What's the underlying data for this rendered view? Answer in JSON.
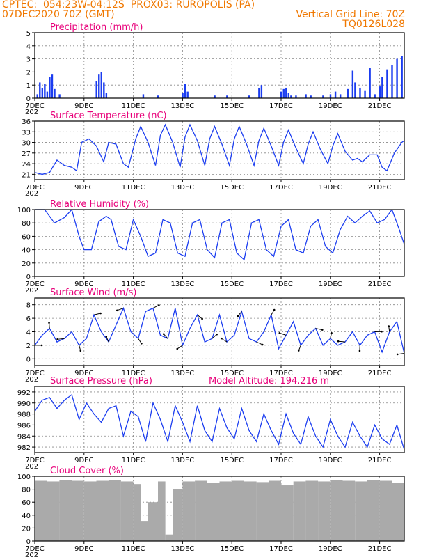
{
  "header": {
    "line1_left": "CPTEC:  054:23W-04:12S  PROX03: RUROPOLIS (PA)",
    "line2_left": "07DEC2020 70Z (GMT)",
    "line2_right": "Vertical Grid Line: 70Z",
    "line3_right": "TQ0126L028"
  },
  "colors": {
    "header": "#f07800",
    "title": "#e8007a",
    "line": "#1a3cf0",
    "cloud": "#aaaaaa"
  },
  "x_axis": {
    "labels": [
      "7DEC",
      "9DEC",
      "11DEC",
      "13DEC",
      "15DEC",
      "17DEC",
      "19DEC",
      "21DEC"
    ],
    "label_days": [
      7,
      9,
      11,
      13,
      15,
      17,
      19,
      21
    ],
    "start_day": 7,
    "end_day": 22,
    "clipped_label": "202"
  },
  "panels": [
    {
      "key": "precip",
      "title": "Precipitation (mm/h)",
      "type": "bar",
      "ylim": [
        0,
        5
      ],
      "yticks": [
        0,
        1,
        2,
        3,
        4,
        5
      ]
    },
    {
      "key": "temp",
      "title": "Surface Temperature (nC)",
      "type": "line",
      "ylim": [
        19.5,
        36
      ],
      "yticks": [
        21,
        24,
        27,
        30,
        33,
        36
      ]
    },
    {
      "key": "rh",
      "title": "Relative Humidity (%)",
      "type": "line",
      "ylim": [
        0,
        100
      ],
      "yticks": [
        0,
        20,
        40,
        60,
        80,
        100
      ]
    },
    {
      "key": "wind",
      "title": "Surface Wind (m/s)",
      "type": "line+arrows",
      "ylim": [
        -1,
        9
      ],
      "yticks": [
        0,
        2,
        4,
        6,
        8
      ]
    },
    {
      "key": "pres",
      "title": "Surface Pressure (hPa)",
      "subtitle": "Model Altitude: 194.216 m",
      "type": "line",
      "ylim": [
        981,
        993
      ],
      "yticks": [
        982,
        984,
        986,
        988,
        990,
        992
      ]
    },
    {
      "key": "cloud",
      "title": "Cloud Cover (%)",
      "type": "bar",
      "ylim": [
        0,
        100
      ],
      "yticks": [
        0,
        20,
        40,
        60,
        80,
        100
      ]
    }
  ],
  "chart_data": [
    {
      "type": "bar",
      "title": "Precipitation (mm/h)",
      "ylim": [
        0,
        5
      ],
      "x": [
        7.1,
        7.2,
        7.3,
        7.4,
        7.5,
        7.6,
        7.7,
        7.8,
        8.0,
        9.5,
        9.6,
        9.7,
        9.8,
        9.9,
        11.4,
        12.0,
        13.0,
        13.1,
        13.2,
        14.3,
        14.8,
        15.7,
        16.1,
        16.2,
        17.0,
        17.1,
        17.2,
        17.3,
        17.4,
        17.6,
        18.0,
        18.2,
        18.7,
        19.0,
        19.2,
        19.4,
        19.7,
        19.9,
        20.0,
        20.2,
        20.4,
        20.6,
        20.8,
        21.0,
        21.1,
        21.3,
        21.5,
        21.7,
        21.9
      ],
      "values": [
        0.3,
        1.2,
        0.8,
        1.1,
        0.5,
        1.6,
        1.8,
        0.7,
        0.3,
        1.3,
        1.8,
        2.0,
        1.2,
        0.4,
        0.3,
        0.2,
        0.4,
        1.1,
        0.5,
        0.2,
        0.2,
        0.2,
        0.8,
        1.0,
        0.5,
        0.7,
        0.8,
        0.4,
        0.2,
        0.2,
        0.3,
        0.2,
        0.2,
        0.3,
        0.5,
        0.3,
        0.7,
        2.1,
        1.2,
        0.8,
        0.6,
        2.3,
        0.3,
        0.9,
        1.6,
        2.2,
        2.5,
        3.0,
        3.2
      ]
    },
    {
      "type": "line",
      "title": "Surface Temperature (nC)",
      "ylim": [
        19.5,
        36
      ],
      "x": [
        7.0,
        7.3,
        7.6,
        7.9,
        8.2,
        8.5,
        8.7,
        8.9,
        9.2,
        9.5,
        9.8,
        10.0,
        10.3,
        10.6,
        10.8,
        11.1,
        11.3,
        11.6,
        11.9,
        12.1,
        12.3,
        12.6,
        12.9,
        13.1,
        13.3,
        13.6,
        13.9,
        14.1,
        14.3,
        14.6,
        14.9,
        15.1,
        15.3,
        15.6,
        15.9,
        16.1,
        16.3,
        16.6,
        16.9,
        17.1,
        17.3,
        17.6,
        17.9,
        18.1,
        18.3,
        18.6,
        18.9,
        19.1,
        19.3,
        19.6,
        19.9,
        20.1,
        20.3,
        20.6,
        20.9,
        21.1,
        21.3,
        21.6,
        21.9,
        22.0
      ],
      "values": [
        21.5,
        21.0,
        21.5,
        25.0,
        23.5,
        23.0,
        22.0,
        30.0,
        31.0,
        29.0,
        24.5,
        30.0,
        29.5,
        24.0,
        23.0,
        31.0,
        34.5,
        30.0,
        23.5,
        32.0,
        35.0,
        30.0,
        23.0,
        31.5,
        35.0,
        30.5,
        23.5,
        31.0,
        34.5,
        29.5,
        23.5,
        31.0,
        34.5,
        29.5,
        23.5,
        30.5,
        34.0,
        29.0,
        23.5,
        30.0,
        33.5,
        28.5,
        24.0,
        29.5,
        33.0,
        28.0,
        24.0,
        29.0,
        32.5,
        27.5,
        25.0,
        25.5,
        24.5,
        26.5,
        26.5,
        23.0,
        22.0,
        27.0,
        30.0,
        30.5
      ]
    },
    {
      "type": "line",
      "title": "Relative Humidity (%)",
      "ylim": [
        0,
        100
      ],
      "x": [
        7.0,
        7.4,
        7.8,
        8.2,
        8.5,
        8.8,
        9.0,
        9.3,
        9.6,
        9.9,
        10.1,
        10.4,
        10.7,
        11.0,
        11.3,
        11.6,
        11.9,
        12.2,
        12.5,
        12.8,
        13.1,
        13.4,
        13.7,
        14.0,
        14.3,
        14.6,
        14.9,
        15.2,
        15.5,
        15.8,
        16.1,
        16.4,
        16.7,
        17.0,
        17.3,
        17.6,
        17.9,
        18.2,
        18.5,
        18.8,
        19.1,
        19.4,
        19.7,
        20.0,
        20.3,
        20.6,
        20.9,
        21.2,
        21.5,
        21.8,
        22.0
      ],
      "values": [
        100,
        100,
        80,
        88,
        100,
        60,
        40,
        40,
        82,
        90,
        85,
        45,
        40,
        85,
        60,
        30,
        35,
        85,
        80,
        35,
        30,
        80,
        85,
        40,
        28,
        80,
        85,
        35,
        25,
        80,
        85,
        40,
        30,
        75,
        85,
        40,
        35,
        75,
        85,
        45,
        35,
        70,
        90,
        80,
        90,
        98,
        80,
        85,
        100,
        70,
        48
      ]
    },
    {
      "type": "line",
      "title": "Surface Wind (m/s)",
      "ylim": [
        -1,
        9
      ],
      "x": [
        7.0,
        7.3,
        7.6,
        7.9,
        8.2,
        8.5,
        8.8,
        9.1,
        9.4,
        9.7,
        10.0,
        10.3,
        10.6,
        10.9,
        11.2,
        11.5,
        11.8,
        12.1,
        12.4,
        12.7,
        13.0,
        13.3,
        13.6,
        13.9,
        14.2,
        14.5,
        14.8,
        15.1,
        15.4,
        15.7,
        16.0,
        16.3,
        16.6,
        16.9,
        17.2,
        17.5,
        17.8,
        18.1,
        18.4,
        18.7,
        19.0,
        19.3,
        19.6,
        19.9,
        20.2,
        20.5,
        20.8,
        21.1,
        21.4,
        21.7,
        22.0
      ],
      "values": [
        2.0,
        3.5,
        4.5,
        2.5,
        3.0,
        4.0,
        2.0,
        3.0,
        6.5,
        4.0,
        2.5,
        5.0,
        7.5,
        4.0,
        3.0,
        7.0,
        7.5,
        3.5,
        3.0,
        7.5,
        2.0,
        4.5,
        6.5,
        2.5,
        3.0,
        6.5,
        2.5,
        3.5,
        7.0,
        3.0,
        2.5,
        4.0,
        6.5,
        1.5,
        3.5,
        5.5,
        2.0,
        3.5,
        4.5,
        2.0,
        3.0,
        2.0,
        2.5,
        4.0,
        2.0,
        3.5,
        4.0,
        1.0,
        4.0,
        5.5,
        0.8
      ]
    },
    {
      "type": "line",
      "title": "Surface Pressure (hPa)",
      "ylim": [
        981,
        993
      ],
      "x": [
        7.0,
        7.3,
        7.6,
        7.9,
        8.2,
        8.5,
        8.8,
        9.1,
        9.4,
        9.7,
        10.0,
        10.3,
        10.6,
        10.9,
        11.2,
        11.5,
        11.8,
        12.1,
        12.4,
        12.7,
        13.0,
        13.3,
        13.6,
        13.9,
        14.2,
        14.5,
        14.8,
        15.1,
        15.4,
        15.7,
        16.0,
        16.3,
        16.6,
        16.9,
        17.2,
        17.5,
        17.8,
        18.1,
        18.4,
        18.7,
        19.0,
        19.3,
        19.6,
        19.9,
        20.2,
        20.5,
        20.8,
        21.1,
        21.4,
        21.7,
        22.0
      ],
      "values": [
        988.5,
        990.5,
        991.0,
        989.0,
        990.5,
        991.5,
        987.0,
        990.0,
        988.0,
        986.5,
        989.0,
        989.5,
        984.0,
        988.5,
        987.5,
        983.0,
        990.0,
        987.0,
        983.0,
        989.5,
        986.5,
        983.0,
        989.5,
        985.0,
        983.0,
        989.0,
        985.5,
        983.5,
        989.0,
        985.0,
        983.0,
        988.0,
        985.0,
        982.5,
        988.0,
        984.5,
        982.5,
        987.5,
        984.0,
        982.0,
        987.0,
        984.0,
        982.0,
        986.5,
        984.0,
        982.0,
        986.0,
        983.5,
        982.5,
        986.0,
        981.5
      ]
    },
    {
      "type": "bar",
      "title": "Cloud Cover (%)",
      "ylim": [
        0,
        100
      ],
      "x": [
        7.0,
        7.5,
        8.0,
        8.5,
        9.0,
        9.5,
        10.0,
        10.5,
        11.0,
        11.3,
        11.6,
        12.0,
        12.3,
        12.6,
        13.0,
        13.5,
        14.0,
        14.5,
        15.0,
        15.5,
        16.0,
        16.5,
        17.0,
        17.5,
        18.0,
        18.5,
        19.0,
        19.5,
        20.0,
        20.5,
        21.0,
        21.5,
        22.0
      ],
      "values": [
        93,
        92,
        94,
        93,
        92,
        93,
        94,
        92,
        88,
        30,
        60,
        92,
        10,
        80,
        92,
        93,
        90,
        92,
        93,
        92,
        91,
        93,
        86,
        92,
        93,
        92,
        94,
        93,
        92,
        94,
        93,
        90,
        92
      ]
    }
  ]
}
